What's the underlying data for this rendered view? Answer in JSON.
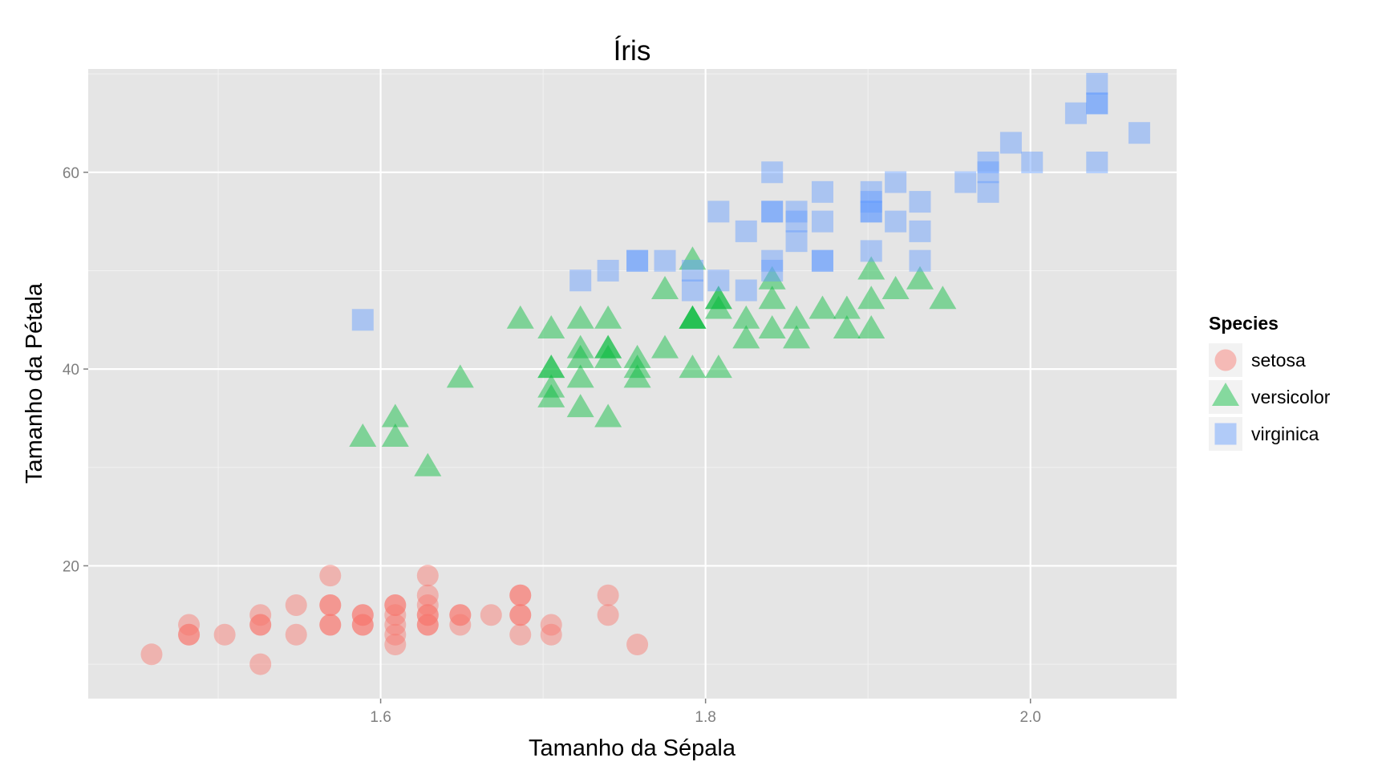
{
  "chart_data": {
    "type": "scatter",
    "title": "Íris",
    "xlabel": "Tamanho da Sépala",
    "ylabel": "Tamanho da Pétala",
    "xlim": [
      1.42,
      2.09
    ],
    "ylim": [
      6.5,
      70.5
    ],
    "x_ticks": [
      1.6,
      1.8,
      2.0
    ],
    "x_tick_labels": [
      "1.6",
      "1.8",
      "2.0"
    ],
    "y_ticks": [
      20,
      40,
      60
    ],
    "y_tick_labels": [
      "20",
      "40",
      "60"
    ],
    "grid": true,
    "legend_title": "Species",
    "legend_position": "right",
    "series": [
      {
        "name": "setosa",
        "shape": "circle",
        "color": "#F8766D",
        "points": [
          [
            1.459,
            11
          ],
          [
            1.482,
            14
          ],
          [
            1.482,
            13
          ],
          [
            1.482,
            13
          ],
          [
            1.504,
            13
          ],
          [
            1.526,
            15
          ],
          [
            1.526,
            14
          ],
          [
            1.526,
            14
          ],
          [
            1.526,
            10
          ],
          [
            1.548,
            16
          ],
          [
            1.548,
            13
          ],
          [
            1.569,
            19
          ],
          [
            1.569,
            16
          ],
          [
            1.569,
            16
          ],
          [
            1.569,
            14
          ],
          [
            1.569,
            14
          ],
          [
            1.589,
            15
          ],
          [
            1.589,
            15
          ],
          [
            1.589,
            14
          ],
          [
            1.589,
            14
          ],
          [
            1.609,
            16
          ],
          [
            1.609,
            16
          ],
          [
            1.609,
            15
          ],
          [
            1.609,
            14
          ],
          [
            1.609,
            13
          ],
          [
            1.609,
            12
          ],
          [
            1.629,
            19
          ],
          [
            1.629,
            17
          ],
          [
            1.629,
            16
          ],
          [
            1.629,
            15
          ],
          [
            1.629,
            15
          ],
          [
            1.629,
            14
          ],
          [
            1.629,
            14
          ],
          [
            1.649,
            15
          ],
          [
            1.649,
            15
          ],
          [
            1.649,
            14
          ],
          [
            1.668,
            15
          ],
          [
            1.686,
            17
          ],
          [
            1.686,
            17
          ],
          [
            1.686,
            15
          ],
          [
            1.686,
            15
          ],
          [
            1.686,
            13
          ],
          [
            1.705,
            14
          ],
          [
            1.705,
            13
          ],
          [
            1.74,
            17
          ],
          [
            1.74,
            15
          ],
          [
            1.758,
            12
          ]
        ]
      },
      {
        "name": "versicolor",
        "shape": "triangle",
        "color": "#00BA38",
        "points": [
          [
            1.589,
            33
          ],
          [
            1.609,
            35
          ],
          [
            1.609,
            33
          ],
          [
            1.629,
            30
          ],
          [
            1.649,
            39
          ],
          [
            1.686,
            45
          ],
          [
            1.705,
            44
          ],
          [
            1.705,
            40
          ],
          [
            1.705,
            40
          ],
          [
            1.705,
            38
          ],
          [
            1.705,
            37
          ],
          [
            1.723,
            45
          ],
          [
            1.723,
            42
          ],
          [
            1.723,
            41
          ],
          [
            1.723,
            39
          ],
          [
            1.723,
            36
          ],
          [
            1.74,
            45
          ],
          [
            1.74,
            42
          ],
          [
            1.74,
            42
          ],
          [
            1.74,
            41
          ],
          [
            1.74,
            35
          ],
          [
            1.758,
            41
          ],
          [
            1.758,
            40
          ],
          [
            1.758,
            39
          ],
          [
            1.775,
            48
          ],
          [
            1.775,
            42
          ],
          [
            1.792,
            51
          ],
          [
            1.792,
            45
          ],
          [
            1.792,
            45
          ],
          [
            1.792,
            45
          ],
          [
            1.792,
            40
          ],
          [
            1.808,
            47
          ],
          [
            1.808,
            47
          ],
          [
            1.808,
            46
          ],
          [
            1.808,
            40
          ],
          [
            1.825,
            45
          ],
          [
            1.825,
            43
          ],
          [
            1.841,
            49
          ],
          [
            1.841,
            47
          ],
          [
            1.841,
            44
          ],
          [
            1.856,
            45
          ],
          [
            1.856,
            43
          ],
          [
            1.872,
            46
          ],
          [
            1.887,
            46
          ],
          [
            1.887,
            44
          ],
          [
            1.902,
            50
          ],
          [
            1.902,
            47
          ],
          [
            1.902,
            44
          ],
          [
            1.917,
            48
          ],
          [
            1.932,
            49
          ],
          [
            1.946,
            47
          ]
        ]
      },
      {
        "name": "virginica",
        "shape": "square",
        "color": "#619CFF",
        "points": [
          [
            1.589,
            45
          ],
          [
            1.723,
            49
          ],
          [
            1.74,
            50
          ],
          [
            1.758,
            51
          ],
          [
            1.758,
            51
          ],
          [
            1.775,
            51
          ],
          [
            1.792,
            50
          ],
          [
            1.792,
            48
          ],
          [
            1.808,
            56
          ],
          [
            1.808,
            49
          ],
          [
            1.825,
            54
          ],
          [
            1.825,
            48
          ],
          [
            1.841,
            60
          ],
          [
            1.841,
            56
          ],
          [
            1.841,
            56
          ],
          [
            1.841,
            51
          ],
          [
            1.841,
            50
          ],
          [
            1.856,
            56
          ],
          [
            1.856,
            55
          ],
          [
            1.856,
            53
          ],
          [
            1.872,
            58
          ],
          [
            1.872,
            55
          ],
          [
            1.872,
            51
          ],
          [
            1.872,
            51
          ],
          [
            1.902,
            58
          ],
          [
            1.902,
            57
          ],
          [
            1.902,
            56
          ],
          [
            1.902,
            56
          ],
          [
            1.902,
            52
          ],
          [
            1.917,
            59
          ],
          [
            1.917,
            55
          ],
          [
            1.932,
            57
          ],
          [
            1.932,
            54
          ],
          [
            1.932,
            51
          ],
          [
            1.96,
            59
          ],
          [
            1.974,
            61
          ],
          [
            1.974,
            60
          ],
          [
            1.974,
            58
          ],
          [
            1.988,
            63
          ],
          [
            2.001,
            61
          ],
          [
            2.028,
            66
          ],
          [
            2.041,
            69
          ],
          [
            2.041,
            67
          ],
          [
            2.041,
            67
          ],
          [
            2.041,
            61
          ],
          [
            2.067,
            64
          ]
        ]
      }
    ]
  }
}
